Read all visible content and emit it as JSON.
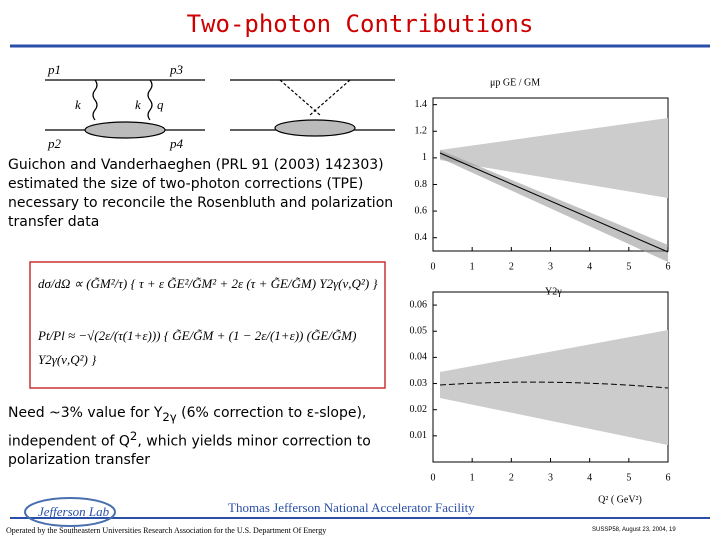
{
  "title": "Two-photon Contributions",
  "diagram": {
    "labels": [
      "p1",
      "p3",
      "k",
      "q",
      "k",
      "p2",
      "p4"
    ]
  },
  "paragraph1": "Guichon and Vanderhaeghen (PRL 91 (2003) 142303) estimated the size of two-photon corrections (TPE) necessary to reconcile the Rosenbluth and polarization transfer data",
  "equations": [
    "dσ/dΩ ∝ (G̃M²/τ) { τ + ε G̃E²/G̃M² + 2ε (τ + G̃E/G̃M) Y2γ(ν,Q²) }",
    "Pt/Pl ≈ −√(2ε/(τ(1+ε))) { G̃E/G̃M + (1 − 2ε/(1+ε)) (G̃E/G̃M) Y2γ(ν,Q²) }"
  ],
  "paragraph2": {
    "a": "Need ~3% value for Y",
    "sub": "2γ",
    "b": " (6% correction to ε-slope), independent of Q",
    "sup": "2",
    "c": ", which yields minor correction to polarization transfer"
  },
  "plots": [
    {
      "ylabel": "μp GE / GM",
      "ylim": [
        0.3,
        1.45
      ],
      "yticks": [
        0.4,
        0.6,
        0.8,
        1,
        1.2,
        1.4
      ],
      "xlim": [
        0,
        6
      ],
      "xticks": [
        0,
        1,
        2,
        3,
        4,
        5,
        6
      ]
    },
    {
      "ylabel": "Y2γ",
      "xlabel": "Q² ( GeV²)",
      "ylim": [
        0,
        0.065
      ],
      "yticks": [
        0.01,
        0.02,
        0.03,
        0.04,
        0.05,
        0.06
      ],
      "xlim": [
        0,
        6
      ],
      "xticks": [
        0,
        1,
        2,
        3,
        4,
        5,
        6
      ]
    }
  ],
  "footer": {
    "logo": "Jefferson Lab",
    "lab": "Thomas Jefferson National Accelerator Facility",
    "operated": "Operated by the Southeastern Universities Research Association for the U.S. Department Of Energy",
    "event": "SUSSP58, August 23, 2004, 19"
  }
}
